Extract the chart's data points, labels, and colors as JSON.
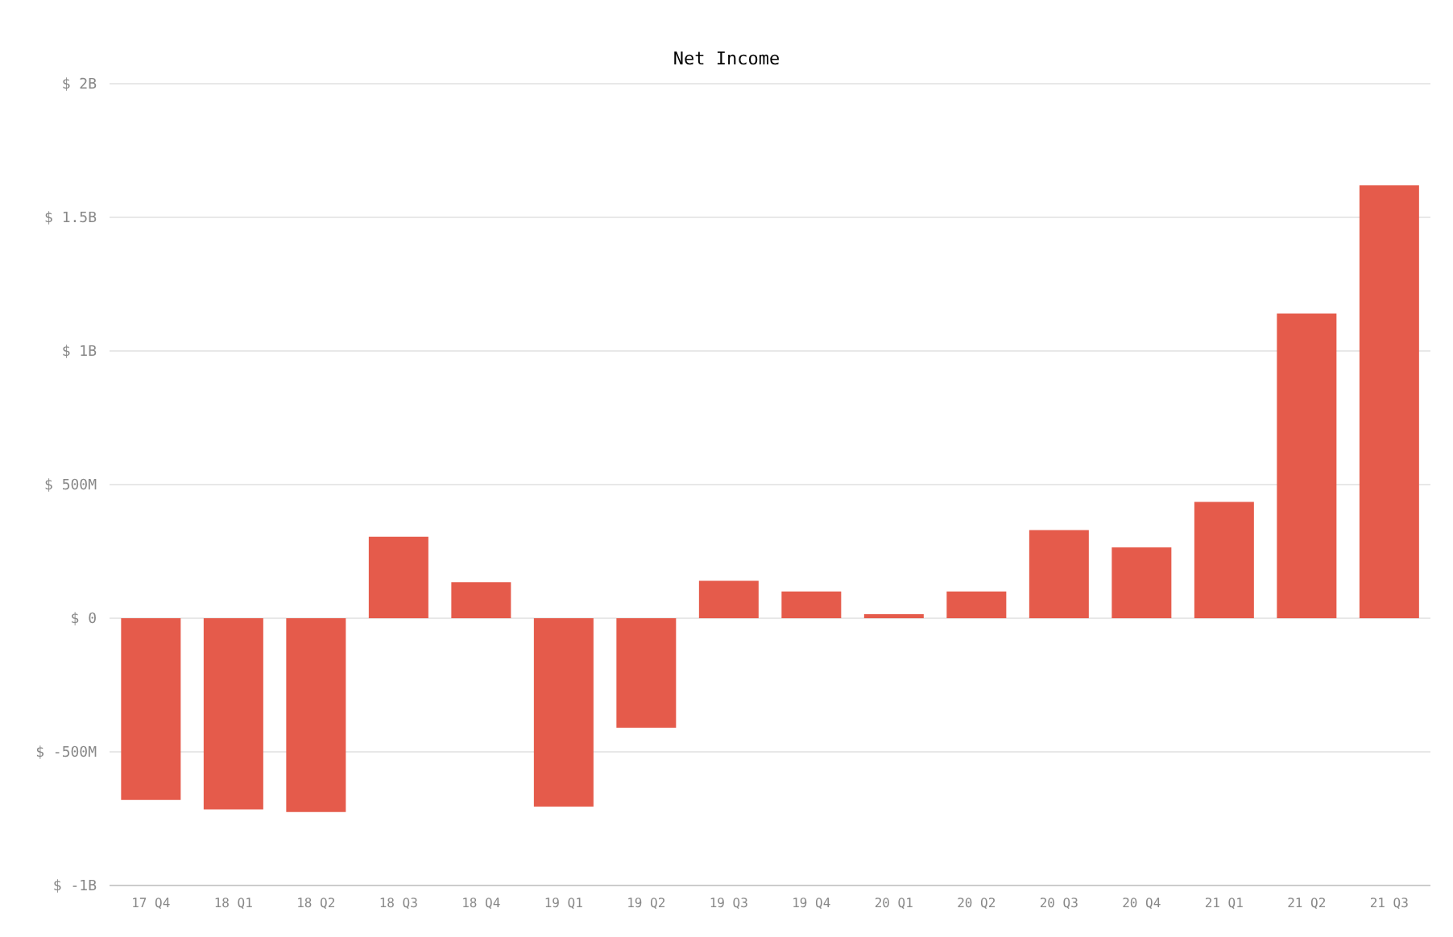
{
  "chart_data": {
    "type": "bar",
    "title": "Net Income",
    "categories": [
      "17 Q4",
      "18 Q1",
      "18 Q2",
      "18 Q3",
      "18 Q4",
      "19 Q1",
      "19 Q2",
      "19 Q3",
      "19 Q4",
      "20 Q1",
      "20 Q2",
      "20 Q3",
      "20 Q4",
      "21 Q1",
      "21 Q2",
      "21 Q3"
    ],
    "values": [
      -680000000,
      -715000000,
      -725000000,
      305000000,
      135000000,
      -705000000,
      -410000000,
      140000000,
      100000000,
      15000000,
      100000000,
      330000000,
      265000000,
      435000000,
      1140000000,
      1620000000
    ],
    "color": "#e55b4b",
    "ylim": [
      -1000000000,
      2000000000
    ],
    "yticks": [
      {
        "value": -1000000000,
        "label": "$ -1B"
      },
      {
        "value": -500000000,
        "label": "$ -500M"
      },
      {
        "value": 0,
        "label": "$ 0"
      },
      {
        "value": 500000000,
        "label": "$ 500M"
      },
      {
        "value": 1000000000,
        "label": "$ 1B"
      },
      {
        "value": 1500000000,
        "label": "$ 1.5B"
      },
      {
        "value": 2000000000,
        "label": "$ 2B"
      }
    ],
    "grid": "y",
    "legend": false
  }
}
